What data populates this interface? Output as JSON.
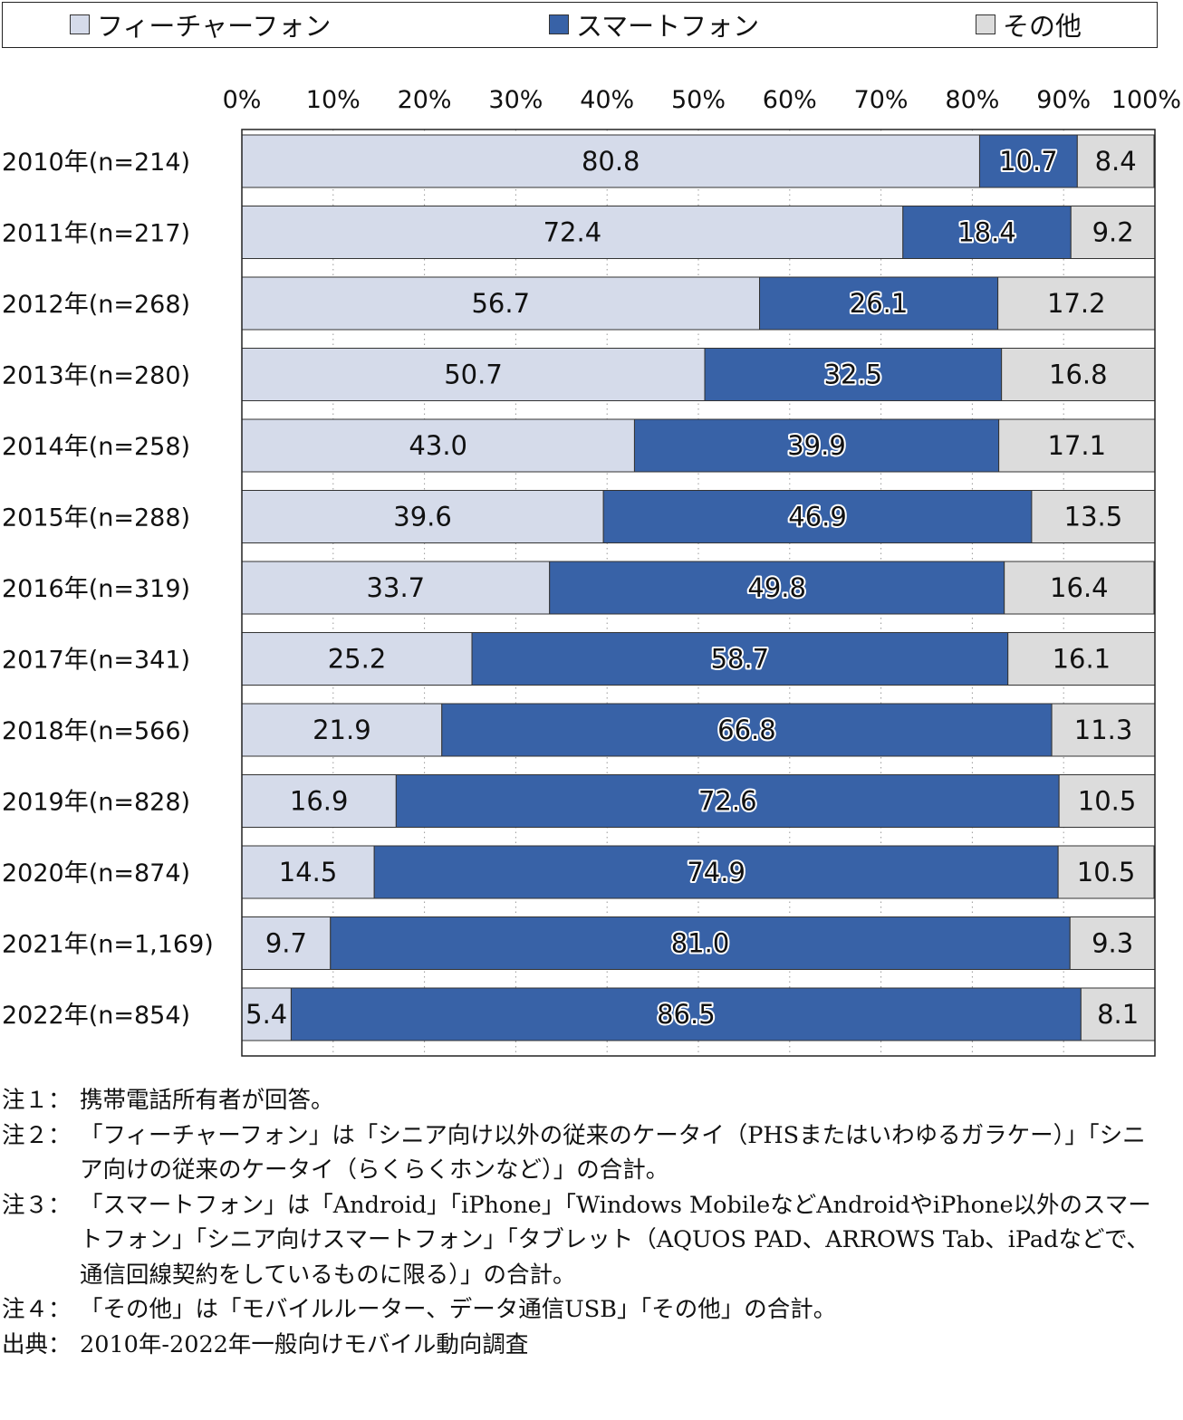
{
  "chart_data": {
    "type": "bar",
    "orientation": "horizontal",
    "stacked": true,
    "categories": [
      "2010年(n=214)",
      "2011年(n=217)",
      "2012年(n=268)",
      "2013年(n=280)",
      "2014年(n=258)",
      "2015年(n=288)",
      "2016年(n=319)",
      "2017年(n=341)",
      "2018年(n=566)",
      "2019年(n=828)",
      "2020年(n=874)",
      "2021年(n=1,169)",
      "2022年(n=854)"
    ],
    "series": [
      {
        "name": "フィーチャーフォン",
        "color": "#d5dbea",
        "values": [
          80.8,
          72.4,
          56.7,
          50.7,
          43.0,
          39.6,
          33.7,
          25.2,
          21.9,
          16.9,
          14.5,
          9.7,
          5.4
        ]
      },
      {
        "name": "スマートフォン",
        "color": "#3862a7",
        "values": [
          10.7,
          18.4,
          26.1,
          32.5,
          39.9,
          46.9,
          49.8,
          58.7,
          66.8,
          72.6,
          74.9,
          81.0,
          86.5
        ]
      },
      {
        "name": "その他",
        "color": "#dcdcdc",
        "values": [
          8.4,
          9.2,
          17.2,
          16.8,
          17.1,
          13.5,
          16.4,
          16.1,
          11.3,
          10.5,
          10.5,
          9.3,
          8.1
        ]
      }
    ],
    "xlim": [
      0,
      100
    ],
    "x_ticks": [
      "0%",
      "10%",
      "20%",
      "30%",
      "40%",
      "50%",
      "60%",
      "70%",
      "80%",
      "90%",
      "100%"
    ],
    "legend_position": "top",
    "grid": "vertical dotted"
  },
  "notes": [
    {
      "key": "注１：",
      "text": "携帯電話所有者が回答。"
    },
    {
      "key": "注２：",
      "text": "「フィーチャーフォン」は「シニア向け以外の従来のケータイ（PHSまたはいわゆるガラケー）」「シニア向けの従来のケータイ（らくらくホンなど）」の合計。"
    },
    {
      "key": "注３：",
      "text": "「スマートフォン」は「Android」「iPhone」「Windows MobileなどAndroidやiPhone以外のスマートフォン」「シニア向けスマートフォン」「タブレット（AQUOS PAD、ARROWS Tab、iPadなどで、通信回線契約をしているものに限る）」の合計。"
    },
    {
      "key": "注４：",
      "text": "「その他」は「モバイルルーター、データ通信USB」「その他」の合計。"
    }
  ],
  "source": {
    "key": "出典：",
    "text": "2010年-2022年一般向けモバイル動向調査"
  }
}
